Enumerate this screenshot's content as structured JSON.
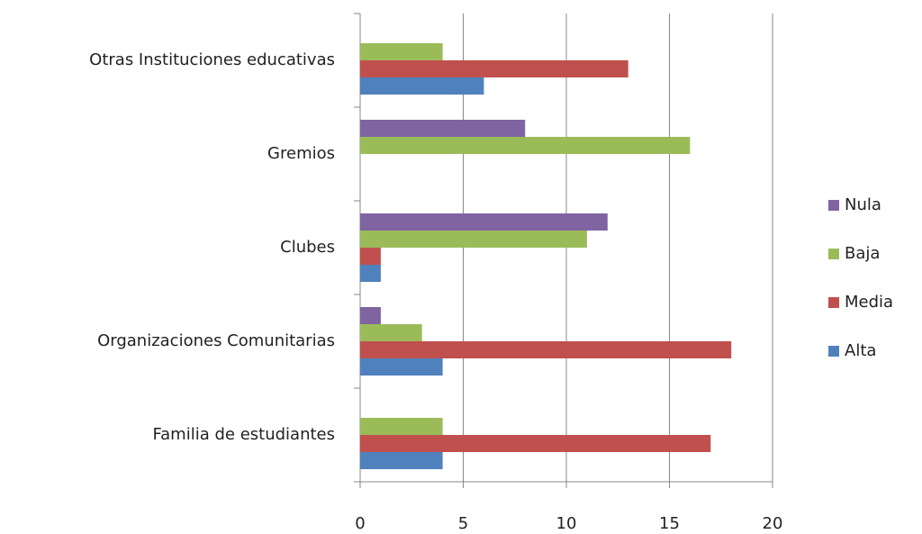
{
  "chart_data": {
    "type": "barh",
    "categories": [
      "Otras Instituciones educativas",
      "Gremios",
      "Clubes",
      "Organizaciones Comunitarias",
      "Familia de estudiantes"
    ],
    "series": [
      {
        "name": "Alta",
        "color": "#4f81bd",
        "values": [
          6,
          0,
          1,
          4,
          4
        ]
      },
      {
        "name": "Media",
        "color": "#c0504d",
        "values": [
          13,
          0,
          1,
          18,
          17
        ]
      },
      {
        "name": "Baja",
        "color": "#9bbb59",
        "values": [
          4,
          16,
          11,
          3,
          4
        ]
      },
      {
        "name": "Nula",
        "color": "#8064a2",
        "values": [
          0,
          8,
          12,
          1,
          0
        ]
      }
    ],
    "xlim": [
      0,
      20
    ],
    "xticks": [
      0,
      5,
      10,
      15,
      20
    ],
    "grid": true,
    "legend": "right"
  }
}
